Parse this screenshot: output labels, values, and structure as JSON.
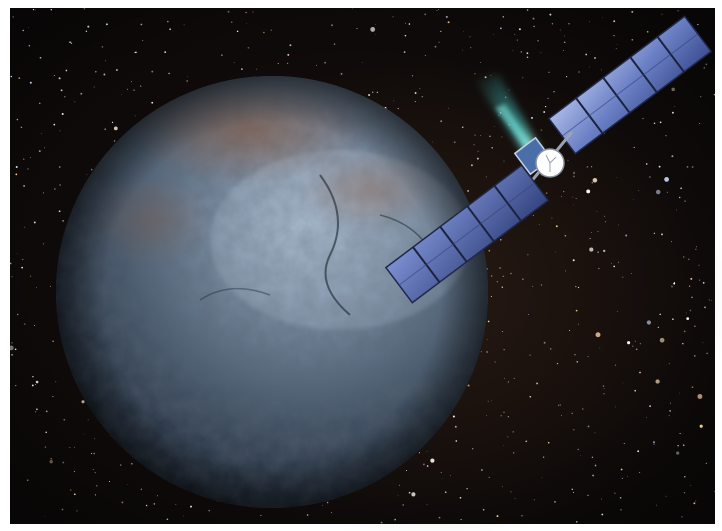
{
  "image": {
    "subject": "",
    "colors": {
      "border": "#ffffff",
      "space": "#0c0908",
      "nebula_warm": "#3a2418",
      "body_light": "#9fb2c8",
      "body_mid": "#4d5f73",
      "body_dark": "#121a24",
      "body_rust": "#7a4a2e",
      "panel": "#5a6fb8",
      "panel_light": "#a9b8e6",
      "thruster_glow": "#49d6d0",
      "dish": "#ffffff"
    },
    "elements": {
      "star_field": "starry-sky",
      "planet": "rocky-dwarf-planet",
      "spacecraft": "spacecraft-with-solar-arrays",
      "ion_plume": "ion-engine-exhaust",
      "antenna": "high-gain-antenna-dish"
    }
  }
}
